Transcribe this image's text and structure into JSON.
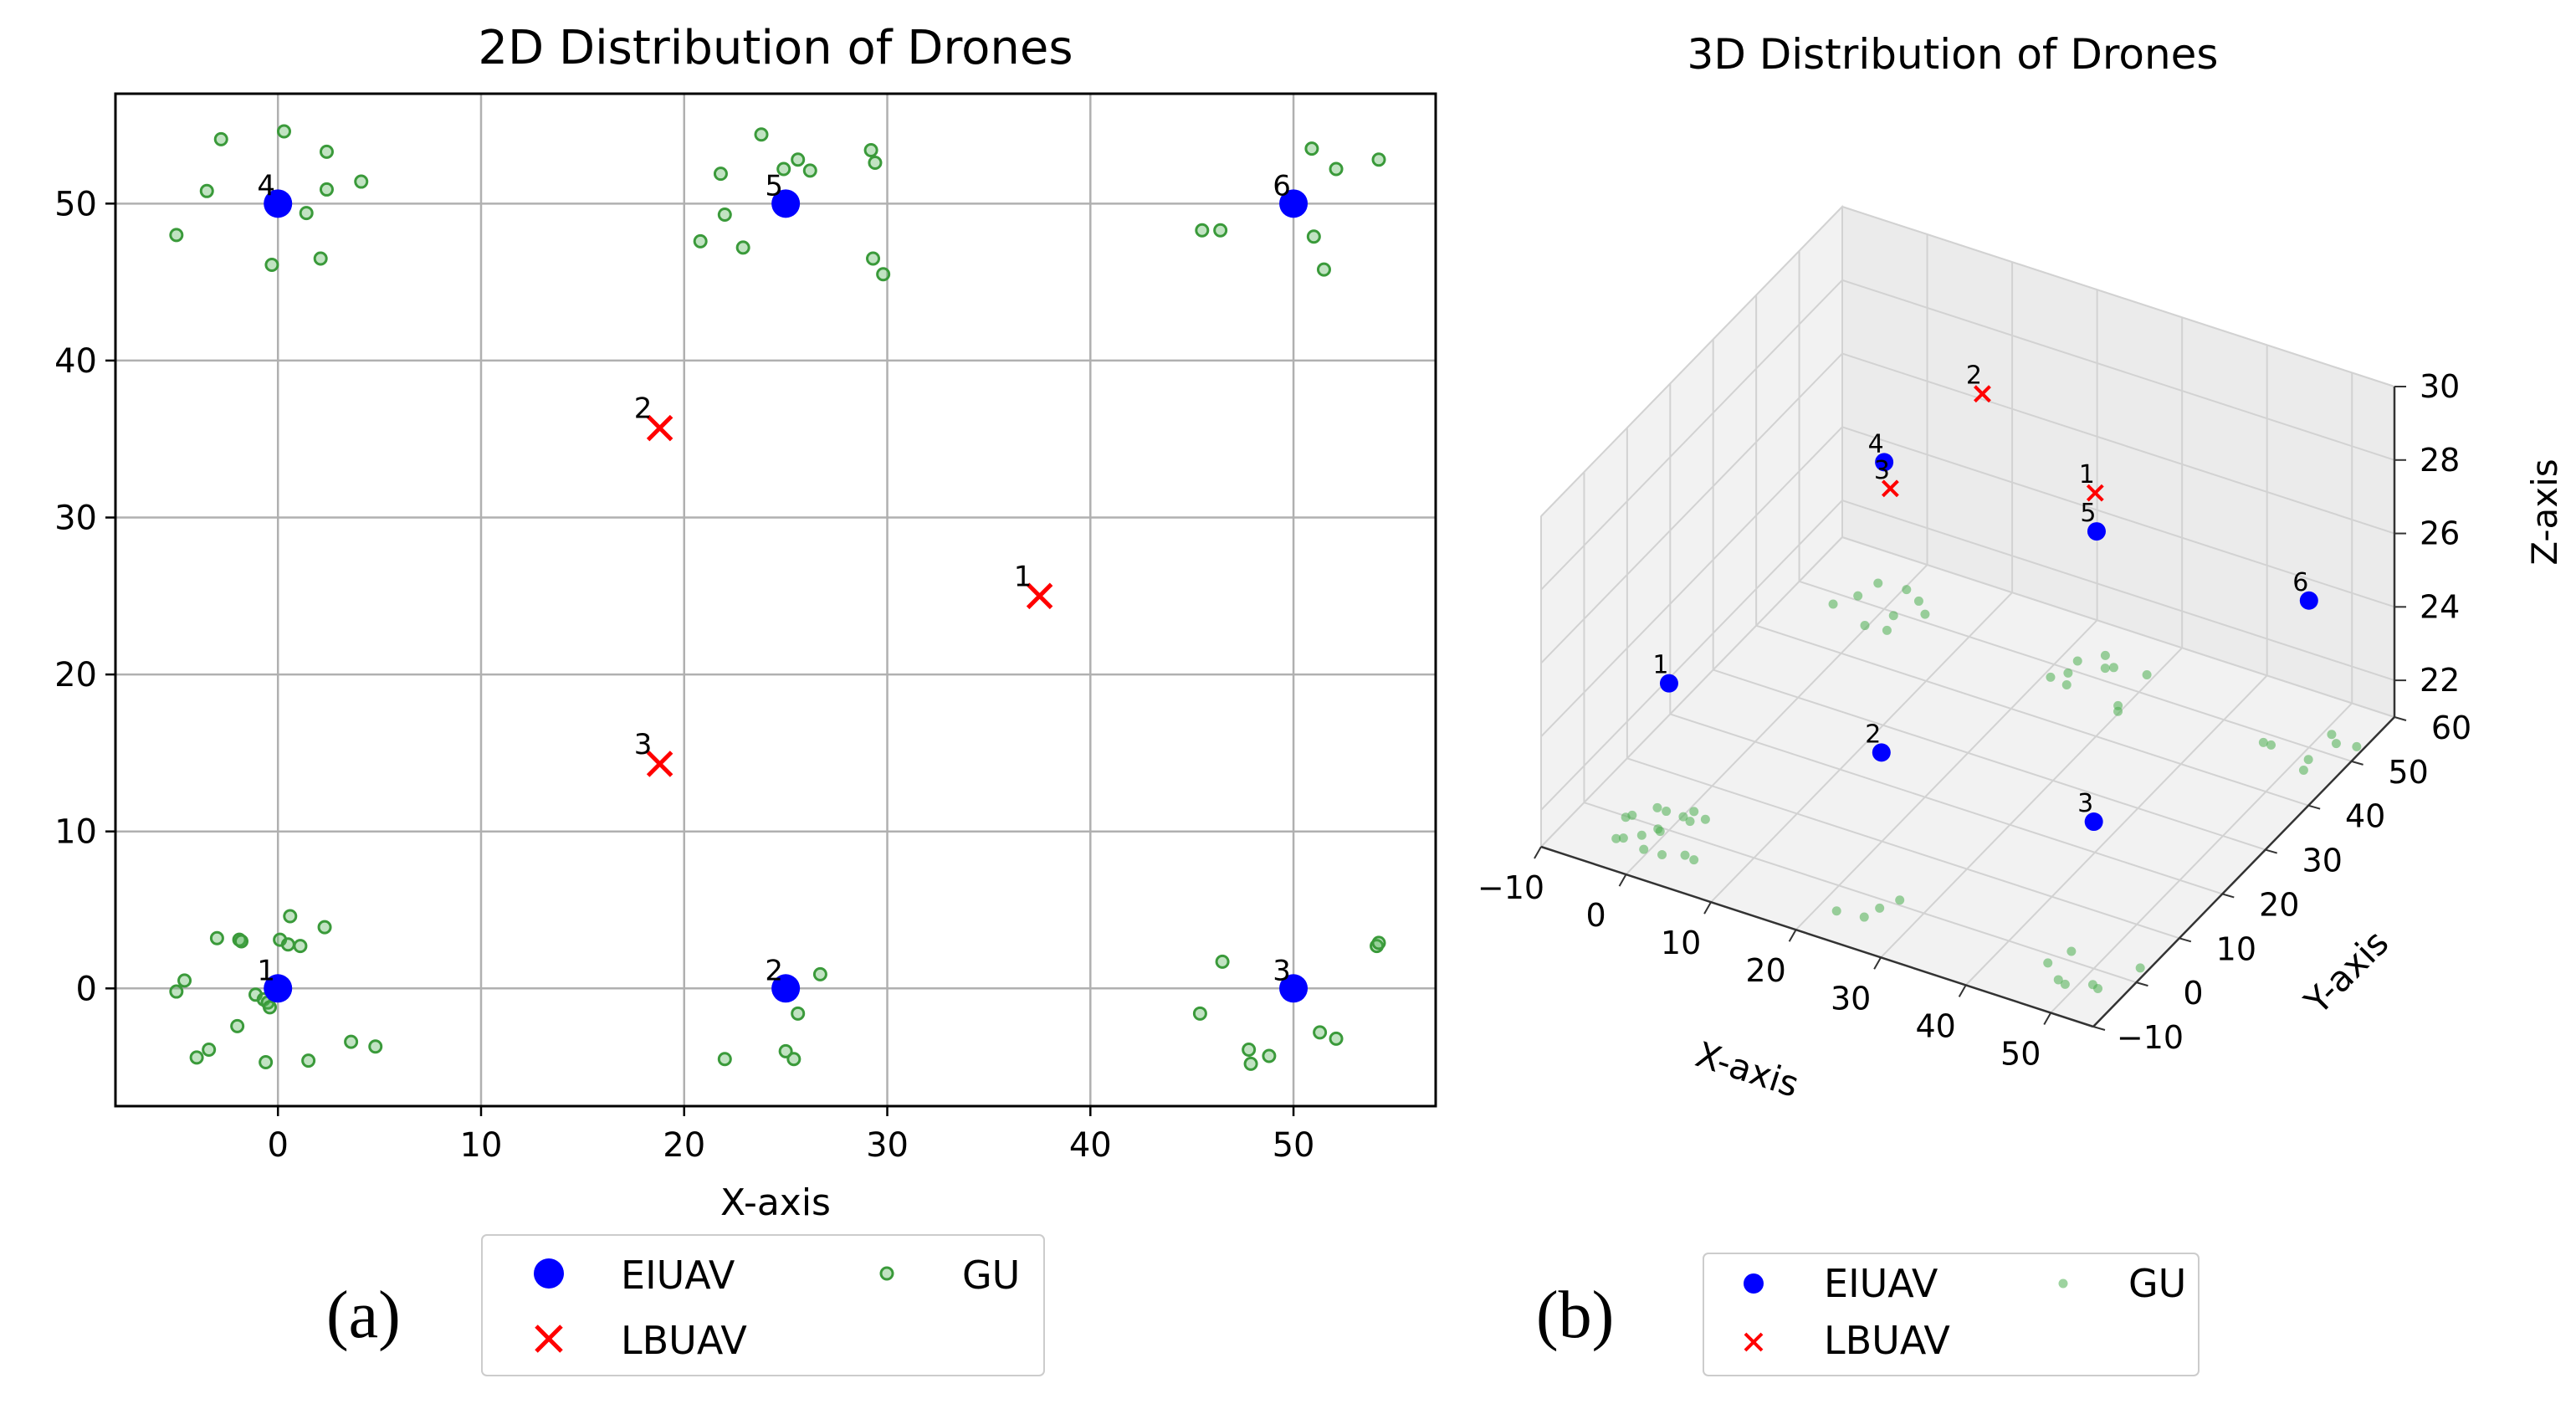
{
  "chart_data": [
    {
      "type": "scatter",
      "title": "2D Distribution of Drones",
      "xlabel": "X-axis",
      "ylabel": "",
      "xlim": [
        -8,
        57
      ],
      "ylim": [
        -7.5,
        57
      ],
      "xticks": [
        0,
        10,
        20,
        30,
        40,
        50
      ],
      "xtick_labels": [
        "0",
        "10",
        "20",
        "30",
        "40",
        "50"
      ],
      "yticks": [
        0,
        10,
        20,
        30,
        40,
        50
      ],
      "ytick_labels": [
        "0",
        "10",
        "20",
        "30",
        "40",
        "50"
      ],
      "grid": true,
      "panel_label": "(a)",
      "legend": {
        "position": "below",
        "entries": [
          {
            "label": "EIUAV",
            "marker": "circle",
            "color": "#0000ff"
          },
          {
            "label": "LBUAV",
            "marker": "x",
            "color": "#ff0000"
          },
          {
            "label": "GU",
            "marker": "small-circle",
            "color": "#4caf50"
          }
        ]
      },
      "series": [
        {
          "name": "EIUAV",
          "color": "#0000ff",
          "points": [
            {
              "label": "1",
              "x": 0,
              "y": 0
            },
            {
              "label": "2",
              "x": 25,
              "y": 0
            },
            {
              "label": "3",
              "x": 50,
              "y": 0
            },
            {
              "label": "4",
              "x": 0,
              "y": 50
            },
            {
              "label": "5",
              "x": 25,
              "y": 50
            },
            {
              "label": "6",
              "x": 50,
              "y": 50
            }
          ]
        },
        {
          "name": "LBUAV",
          "color": "#ff0000",
          "points": [
            {
              "label": "1",
              "x": 37.5,
              "y": 25
            },
            {
              "label": "2",
              "x": 18.8,
              "y": 35.7
            },
            {
              "label": "3",
              "x": 18.8,
              "y": 14.3
            }
          ]
        },
        {
          "name": "GU",
          "color": "#4caf50",
          "points": [
            [
              -5,
              -0.2
            ],
            [
              -4.6,
              0.5
            ],
            [
              -4,
              -4.4
            ],
            [
              -3.4,
              -3.9
            ],
            [
              -3,
              3.2
            ],
            [
              -1.9,
              3.1
            ],
            [
              -1.8,
              3.0
            ],
            [
              -1.1,
              -0.4
            ],
            [
              -0.7,
              -0.7
            ],
            [
              -0.5,
              -0.9
            ],
            [
              -0.4,
              -1.2
            ],
            [
              -2,
              -2.4
            ],
            [
              -0.6,
              -4.7
            ],
            [
              0.1,
              3.1
            ],
            [
              0.5,
              2.8
            ],
            [
              0.6,
              4.6
            ],
            [
              1.1,
              2.7
            ],
            [
              1.5,
              -4.6
            ],
            [
              2.3,
              3.9
            ],
            [
              3.6,
              -3.4
            ],
            [
              4.8,
              -3.7
            ],
            [
              22,
              -4.5
            ],
            [
              25,
              -4
            ],
            [
              25.4,
              -4.5
            ],
            [
              25.6,
              -1.6
            ],
            [
              26.7,
              0.9
            ],
            [
              45.4,
              -1.6
            ],
            [
              46.5,
              1.7
            ],
            [
              47.8,
              -3.9
            ],
            [
              47.9,
              -4.8
            ],
            [
              48.8,
              -4.3
            ],
            [
              51.3,
              -2.8
            ],
            [
              52.1,
              -3.2
            ],
            [
              54.1,
              2.7
            ],
            [
              54.2,
              2.9
            ],
            [
              -5,
              48
            ],
            [
              -3.5,
              50.8
            ],
            [
              -2.8,
              54.1
            ],
            [
              -0.3,
              46.1
            ],
            [
              0.3,
              54.6
            ],
            [
              1.4,
              49.4
            ],
            [
              2.1,
              46.5
            ],
            [
              2.4,
              53.3
            ],
            [
              2.4,
              50.9
            ],
            [
              4.1,
              51.4
            ],
            [
              20.8,
              47.6
            ],
            [
              21.8,
              51.9
            ],
            [
              22,
              49.3
            ],
            [
              22.9,
              47.2
            ],
            [
              23.8,
              54.4
            ],
            [
              24.9,
              52.2
            ],
            [
              25.6,
              52.8
            ],
            [
              26.2,
              52.1
            ],
            [
              29.2,
              53.4
            ],
            [
              29.4,
              52.6
            ],
            [
              29.3,
              46.5
            ],
            [
              29.8,
              45.5
            ],
            [
              45.5,
              48.3
            ],
            [
              46.4,
              48.3
            ],
            [
              50.9,
              53.5
            ],
            [
              51,
              47.9
            ],
            [
              51.5,
              45.8
            ],
            [
              52.1,
              52.2
            ],
            [
              54.2,
              52.8
            ]
          ]
        }
      ]
    },
    {
      "type": "scatter",
      "title": "3D Distribution of Drones",
      "xlabel": "X-axis",
      "ylabel": "Y-axis",
      "zlabel": "Z-axis",
      "xlim": [
        -10,
        55
      ],
      "ylim": [
        -10,
        60
      ],
      "zlim": [
        21,
        30
      ],
      "xticks": [
        -10,
        0,
        10,
        20,
        30,
        40,
        50
      ],
      "xtick_labels": [
        "−10",
        "0",
        "10",
        "20",
        "30",
        "40",
        "50"
      ],
      "yticks": [
        -10,
        0,
        10,
        20,
        30,
        40,
        50,
        60
      ],
      "ytick_labels": [
        "−10",
        "0",
        "10",
        "20",
        "30",
        "40",
        "50",
        "60"
      ],
      "zticks": [
        22,
        24,
        26,
        28,
        30
      ],
      "ztick_labels": [
        "22",
        "24",
        "26",
        "28",
        "30"
      ],
      "grid": true,
      "panel_label": "(b)",
      "legend": {
        "position": "below",
        "entries": [
          {
            "label": "EIUAV",
            "marker": "circle",
            "color": "#0000ff"
          },
          {
            "label": "LBUAV",
            "marker": "x",
            "color": "#ff0000"
          },
          {
            "label": "GU",
            "marker": "small-circle",
            "color": "#4caf50"
          }
        ]
      },
      "series": [
        {
          "name": "EIUAV",
          "color": "#0000ff",
          "points": [
            {
              "label": "1",
              "x": 0,
              "y": 0,
              "z": 25
            },
            {
              "label": "2",
              "x": 25,
              "y": 0,
              "z": 25
            },
            {
              "label": "3",
              "x": 50,
              "y": 0,
              "z": 25
            },
            {
              "label": "4",
              "x": 0,
              "y": 50,
              "z": 25
            },
            {
              "label": "5",
              "x": 25,
              "y": 50,
              "z": 25
            },
            {
              "label": "6",
              "x": 50,
              "y": 50,
              "z": 25
            }
          ]
        },
        {
          "name": "LBUAV",
          "color": "#ff0000",
          "points": [
            {
              "label": "1",
              "x": 37.5,
              "y": 25,
              "z": 30
            },
            {
              "label": "2",
              "x": 18.8,
              "y": 35.7,
              "z": 30
            },
            {
              "label": "3",
              "x": 18.8,
              "y": 14.3,
              "z": 30
            }
          ]
        },
        {
          "name": "GU",
          "color": "#4caf50",
          "z": 21,
          "points": [
            [
              -5,
              -0.2
            ],
            [
              -4.6,
              0.5
            ],
            [
              -4,
              -4.4
            ],
            [
              -3.4,
              -3.9
            ],
            [
              -3,
              3.2
            ],
            [
              -1.9,
              3.1
            ],
            [
              -1.1,
              -0.4
            ],
            [
              -0.7,
              -0.7
            ],
            [
              -2,
              -2.4
            ],
            [
              -0.6,
              -4.7
            ],
            [
              0.1,
              3.1
            ],
            [
              0.6,
              4.6
            ],
            [
              1.1,
              2.7
            ],
            [
              1.5,
              -4.6
            ],
            [
              2.3,
              3.9
            ],
            [
              3.6,
              -3.4
            ],
            [
              4.8,
              -3.7
            ],
            [
              22,
              -4.5
            ],
            [
              25,
              -4
            ],
            [
              25.6,
              -1.6
            ],
            [
              26.7,
              0.9
            ],
            [
              45.4,
              -1.6
            ],
            [
              46.5,
              1.7
            ],
            [
              47.8,
              -3.9
            ],
            [
              48.8,
              -4.3
            ],
            [
              51.3,
              -2.8
            ],
            [
              52.1,
              -3.2
            ],
            [
              54.1,
              2.7
            ],
            [
              -5,
              48
            ],
            [
              -3.5,
              50.8
            ],
            [
              -2.8,
              54.1
            ],
            [
              -0.3,
              46.1
            ],
            [
              0.3,
              54.6
            ],
            [
              1.4,
              49.4
            ],
            [
              2.1,
              46.5
            ],
            [
              2.4,
              53.3
            ],
            [
              4.1,
              51.4
            ],
            [
              20.8,
              47.6
            ],
            [
              21.8,
              51.9
            ],
            [
              22,
              49.3
            ],
            [
              22.9,
              47.2
            ],
            [
              23.8,
              54.4
            ],
            [
              24.9,
              52.2
            ],
            [
              25.6,
              52.8
            ],
            [
              29.2,
              53.4
            ],
            [
              29.3,
              46.5
            ],
            [
              29.8,
              45.5
            ],
            [
              45.5,
              48.3
            ],
            [
              46.4,
              48.3
            ],
            [
              50.9,
              53.5
            ],
            [
              51,
              47.9
            ],
            [
              51.5,
              45.8
            ],
            [
              52.1,
              52.2
            ],
            [
              54.2,
              52.8
            ]
          ]
        }
      ]
    }
  ]
}
